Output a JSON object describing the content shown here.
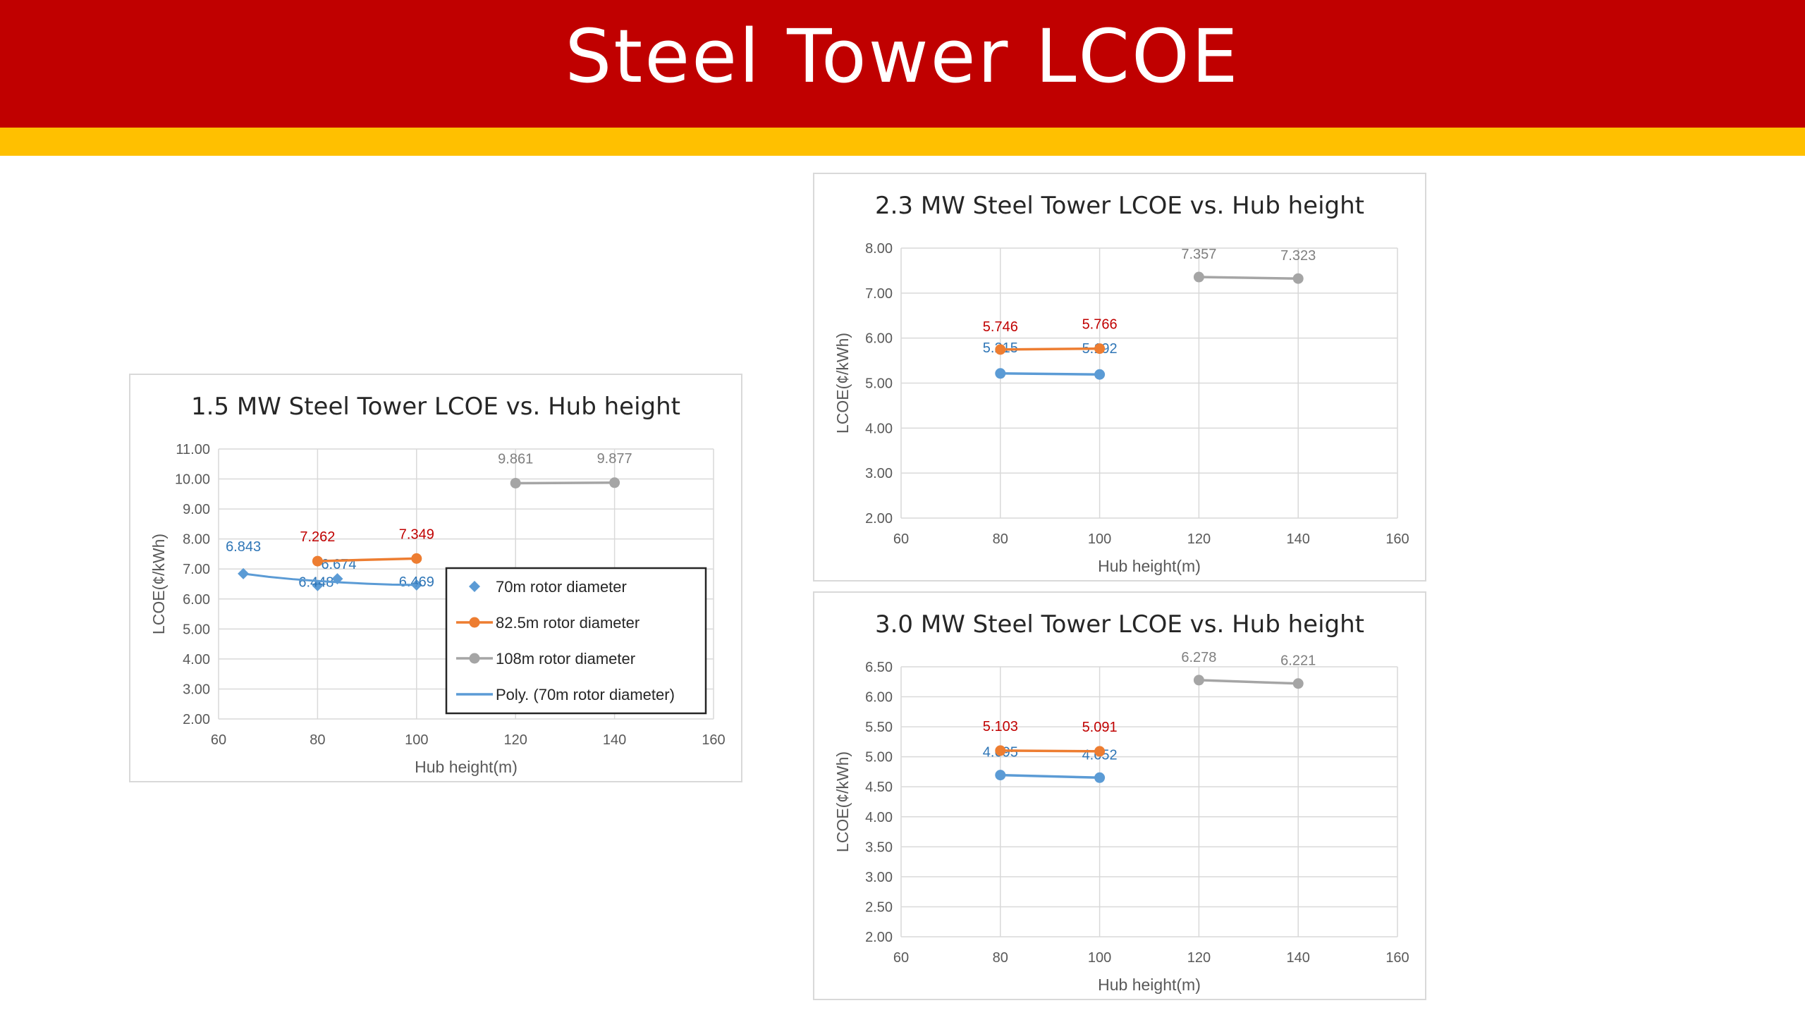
{
  "slide": {
    "title": "Steel Tower LCOE",
    "colors": {
      "header": "#c00000",
      "accent": "#ffc000"
    }
  },
  "chart_data": [
    {
      "type": "line",
      "title": "1.5 MW Steel Tower LCOE vs. Hub height",
      "xlabel": "Hub height(m)",
      "ylabel": "LCOE(¢/kWh)",
      "xlim": [
        60,
        160
      ],
      "ylim": [
        2.0,
        11.0
      ],
      "xticks": [
        "60",
        "80",
        "100",
        "120",
        "140",
        "160"
      ],
      "yticks": [
        "2.00",
        "3.00",
        "4.00",
        "5.00",
        "6.00",
        "7.00",
        "8.00",
        "9.00",
        "10.00",
        "11.00"
      ],
      "grid": true,
      "legend": "inside-right",
      "series": [
        {
          "name": "70m rotor diameter",
          "color": "#5b9bd5",
          "label_color": "#2e75b6",
          "marker": "diamond",
          "line": false,
          "points": [
            {
              "x": 65,
              "y": 6.843,
              "label": "6.843"
            },
            {
              "x": 80,
              "y": 6.448,
              "label": "6.448"
            },
            {
              "x": 84,
              "y": 6.674,
              "label": "6.674"
            },
            {
              "x": 100,
              "y": 6.469,
              "label": "6.469"
            }
          ]
        },
        {
          "name": "82.5m rotor diameter",
          "color": "#ed7d31",
          "label_color": "#c00000",
          "marker": "circle",
          "line": true,
          "points": [
            {
              "x": 80,
              "y": 7.262,
              "label": "7.262"
            },
            {
              "x": 100,
              "y": 7.349,
              "label": "7.349"
            }
          ]
        },
        {
          "name": "108m rotor diameter",
          "color": "#a5a5a5",
          "label_color": "#7f7f7f",
          "marker": "circle",
          "line": true,
          "points": [
            {
              "x": 120,
              "y": 9.861,
              "label": "9.861"
            },
            {
              "x": 140,
              "y": 9.877,
              "label": "9.877"
            }
          ]
        },
        {
          "name": "Poly. (70m rotor diameter)",
          "color": "#5b9bd5",
          "marker": "none",
          "line": true,
          "trendline": true,
          "points": [
            {
              "x": 65,
              "y": 6.843
            },
            {
              "x": 70,
              "y": 6.74
            },
            {
              "x": 75,
              "y": 6.66
            },
            {
              "x": 80,
              "y": 6.6
            },
            {
              "x": 85,
              "y": 6.55
            },
            {
              "x": 90,
              "y": 6.51
            },
            {
              "x": 95,
              "y": 6.48
            },
            {
              "x": 100,
              "y": 6.469
            }
          ]
        }
      ]
    },
    {
      "type": "line",
      "title": "2.3 MW Steel Tower LCOE vs. Hub height",
      "xlabel": "Hub height(m)",
      "ylabel": "LCOE(¢/kWh)",
      "xlim": [
        60,
        160
      ],
      "ylim": [
        2.0,
        8.0
      ],
      "xticks": [
        "60",
        "80",
        "100",
        "120",
        "140",
        "160"
      ],
      "yticks": [
        "2.00",
        "3.00",
        "4.00",
        "5.00",
        "6.00",
        "7.00",
        "8.00"
      ],
      "grid": true,
      "series": [
        {
          "color": "#5b9bd5",
          "label_color": "#2e75b6",
          "marker": "circle",
          "line": true,
          "points": [
            {
              "x": 80,
              "y": 5.215,
              "label": "5.215"
            },
            {
              "x": 100,
              "y": 5.192,
              "label": "5.192"
            }
          ]
        },
        {
          "color": "#ed7d31",
          "label_color": "#c00000",
          "marker": "circle",
          "line": true,
          "points": [
            {
              "x": 80,
              "y": 5.746,
              "label": "5.746"
            },
            {
              "x": 100,
              "y": 5.766,
              "label": "5.766"
            }
          ]
        },
        {
          "color": "#a5a5a5",
          "label_color": "#7f7f7f",
          "marker": "circle",
          "line": true,
          "points": [
            {
              "x": 120,
              "y": 7.357,
              "label": "7.357"
            },
            {
              "x": 140,
              "y": 7.323,
              "label": "7.323"
            }
          ]
        }
      ]
    },
    {
      "type": "line",
      "title": "3.0 MW Steel Tower LCOE vs. Hub height",
      "xlabel": "Hub height(m)",
      "ylabel": "LCOE(¢/kWh)",
      "xlim": [
        60,
        160
      ],
      "ylim": [
        2.0,
        6.5
      ],
      "xticks": [
        "60",
        "80",
        "100",
        "120",
        "140",
        "160"
      ],
      "yticks": [
        "2.00",
        "2.50",
        "3.00",
        "3.50",
        "4.00",
        "4.50",
        "5.00",
        "5.50",
        "6.00",
        "6.50"
      ],
      "grid": true,
      "series": [
        {
          "color": "#5b9bd5",
          "label_color": "#2e75b6",
          "marker": "circle",
          "line": true,
          "points": [
            {
              "x": 80,
              "y": 4.695,
              "label": "4.695"
            },
            {
              "x": 100,
              "y": 4.652,
              "label": "4.652"
            }
          ]
        },
        {
          "color": "#ed7d31",
          "label_color": "#c00000",
          "marker": "circle",
          "line": true,
          "points": [
            {
              "x": 80,
              "y": 5.103,
              "label": "5.103"
            },
            {
              "x": 100,
              "y": 5.091,
              "label": "5.091"
            }
          ]
        },
        {
          "color": "#a5a5a5",
          "label_color": "#7f7f7f",
          "marker": "circle",
          "line": true,
          "points": [
            {
              "x": 120,
              "y": 6.278,
              "label": "6.278"
            },
            {
              "x": 140,
              "y": 6.221,
              "label": "6.221"
            }
          ]
        }
      ]
    }
  ]
}
